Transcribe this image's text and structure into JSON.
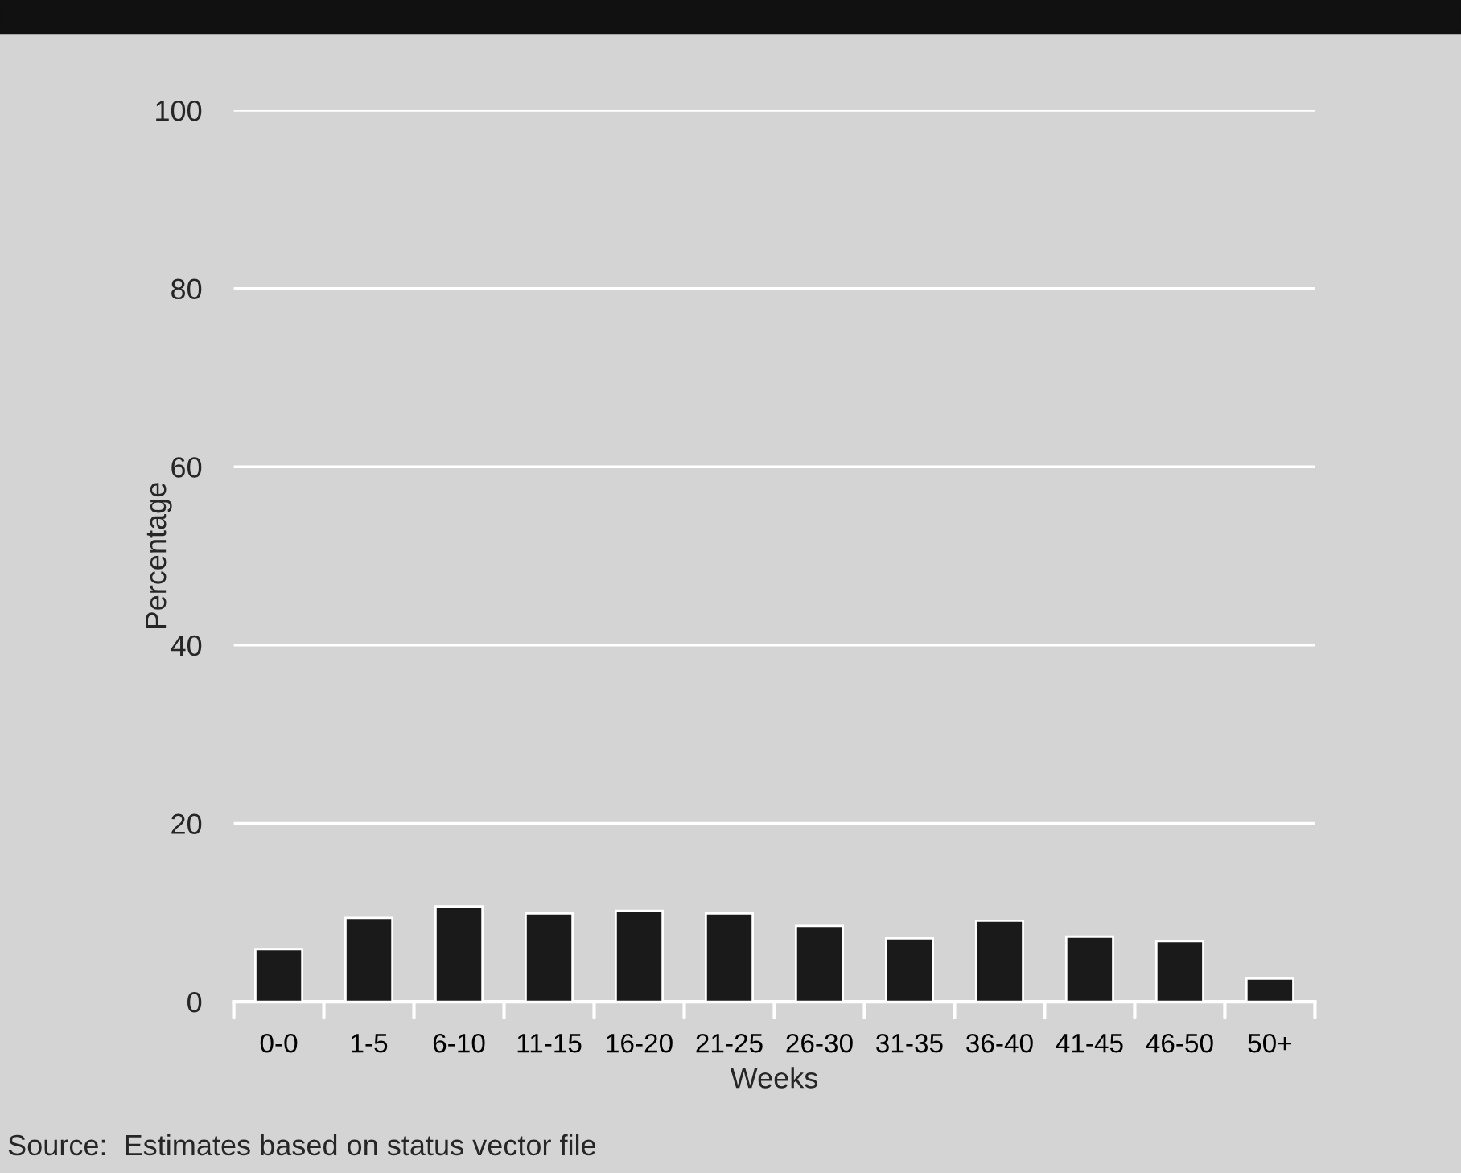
{
  "chart_data": {
    "type": "bar",
    "xlabel": "Weeks",
    "ylabel": "Percentage",
    "categories": [
      "0-0",
      "1-5",
      "6-10",
      "11-15",
      "16-20",
      "21-25",
      "26-30",
      "31-35",
      "36-40",
      "41-45",
      "46-50",
      "50+"
    ],
    "values": [
      5.9,
      9.4,
      10.7,
      9.9,
      10.2,
      9.9,
      8.5,
      7.1,
      9.1,
      7.3,
      6.8,
      2.6
    ],
    "color": "#1a1a1a",
    "ylim": [
      0,
      100
    ],
    "yticks": [
      0,
      20,
      40,
      60,
      80,
      100
    ],
    "grid": "y",
    "annotations": [
      "Source:  Estimates based on status vector file"
    ]
  }
}
